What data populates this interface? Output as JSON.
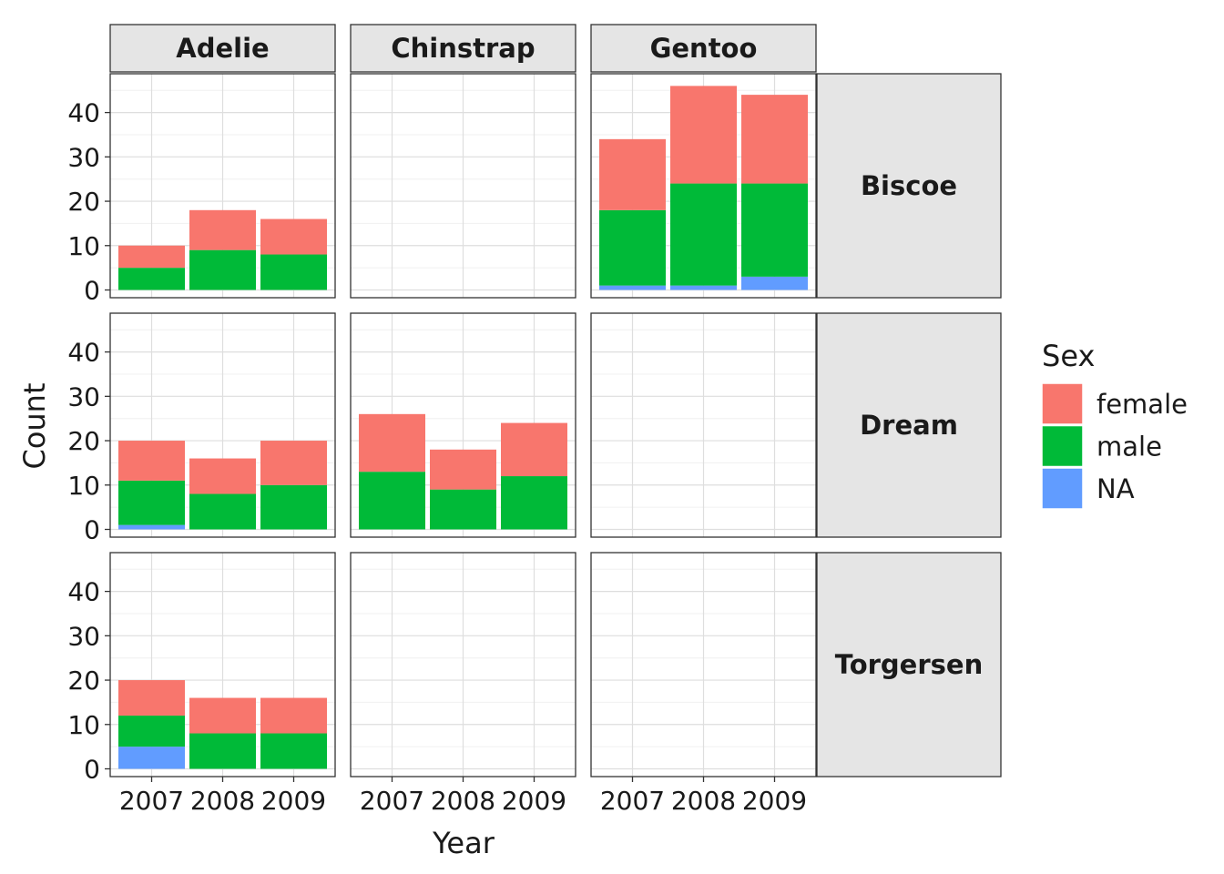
{
  "chart_data": {
    "type": "bar",
    "stacked": true,
    "facet_cols": [
      "Adelie",
      "Chinstrap",
      "Gentoo"
    ],
    "facet_rows": [
      "Biscoe",
      "Dream",
      "Torgersen"
    ],
    "categories": [
      "2007",
      "2008",
      "2009"
    ],
    "xlabel": "Year",
    "ylabel": "Count",
    "ylim": [
      0,
      47
    ],
    "y_ticks": [
      0,
      10,
      20,
      30,
      40
    ],
    "grid": true,
    "legend": {
      "title": "Sex",
      "position": "right",
      "entries": [
        {
          "name": "female",
          "color": "#F8766D"
        },
        {
          "name": "male",
          "color": "#00BA38"
        },
        {
          "name": "NA",
          "color": "#619CFF"
        }
      ]
    },
    "panels": [
      {
        "col": "Adelie",
        "row": "Biscoe",
        "series": [
          {
            "name": "female",
            "values": [
              5,
              9,
              8
            ]
          },
          {
            "name": "male",
            "values": [
              5,
              9,
              8
            ]
          },
          {
            "name": "NA",
            "values": [
              0,
              0,
              0
            ]
          }
        ]
      },
      {
        "col": "Chinstrap",
        "row": "Biscoe",
        "series": [
          {
            "name": "female",
            "values": [
              0,
              0,
              0
            ]
          },
          {
            "name": "male",
            "values": [
              0,
              0,
              0
            ]
          },
          {
            "name": "NA",
            "values": [
              0,
              0,
              0
            ]
          }
        ]
      },
      {
        "col": "Gentoo",
        "row": "Biscoe",
        "series": [
          {
            "name": "female",
            "values": [
              16,
              22,
              20
            ]
          },
          {
            "name": "male",
            "values": [
              17,
              23,
              21
            ]
          },
          {
            "name": "NA",
            "values": [
              1,
              1,
              3
            ]
          }
        ]
      },
      {
        "col": "Adelie",
        "row": "Dream",
        "series": [
          {
            "name": "female",
            "values": [
              9,
              8,
              10
            ]
          },
          {
            "name": "male",
            "values": [
              10,
              8,
              10
            ]
          },
          {
            "name": "NA",
            "values": [
              1,
              0,
              0
            ]
          }
        ]
      },
      {
        "col": "Chinstrap",
        "row": "Dream",
        "series": [
          {
            "name": "female",
            "values": [
              13,
              9,
              12
            ]
          },
          {
            "name": "male",
            "values": [
              13,
              9,
              12
            ]
          },
          {
            "name": "NA",
            "values": [
              0,
              0,
              0
            ]
          }
        ]
      },
      {
        "col": "Gentoo",
        "row": "Dream",
        "series": [
          {
            "name": "female",
            "values": [
              0,
              0,
              0
            ]
          },
          {
            "name": "male",
            "values": [
              0,
              0,
              0
            ]
          },
          {
            "name": "NA",
            "values": [
              0,
              0,
              0
            ]
          }
        ]
      },
      {
        "col": "Adelie",
        "row": "Torgersen",
        "series": [
          {
            "name": "female",
            "values": [
              8,
              8,
              8
            ]
          },
          {
            "name": "male",
            "values": [
              7,
              8,
              8
            ]
          },
          {
            "name": "NA",
            "values": [
              5,
              0,
              0
            ]
          }
        ]
      },
      {
        "col": "Chinstrap",
        "row": "Torgersen",
        "series": [
          {
            "name": "female",
            "values": [
              0,
              0,
              0
            ]
          },
          {
            "name": "male",
            "values": [
              0,
              0,
              0
            ]
          },
          {
            "name": "NA",
            "values": [
              0,
              0,
              0
            ]
          }
        ]
      },
      {
        "col": "Gentoo",
        "row": "Torgersen",
        "series": [
          {
            "name": "female",
            "values": [
              0,
              0,
              0
            ]
          },
          {
            "name": "male",
            "values": [
              0,
              0,
              0
            ]
          },
          {
            "name": "NA",
            "values": [
              0,
              0,
              0
            ]
          }
        ]
      }
    ]
  }
}
